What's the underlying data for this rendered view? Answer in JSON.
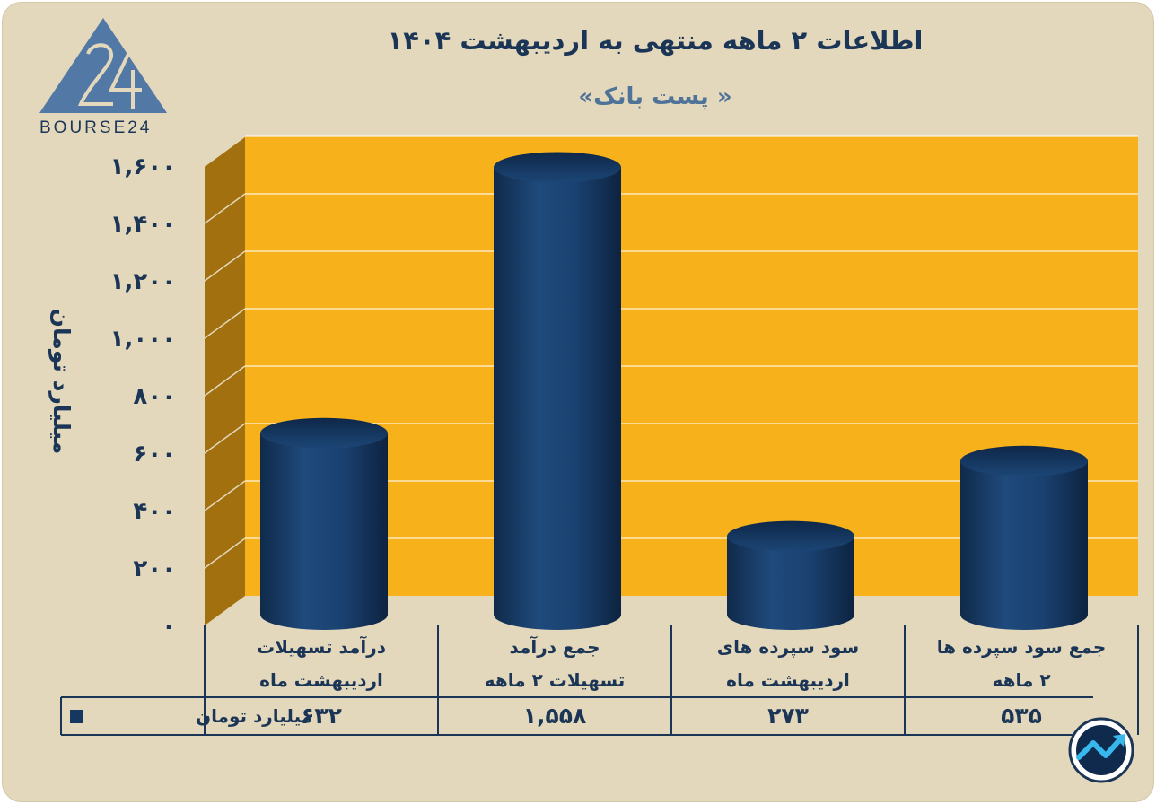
{
  "chart_data": {
    "type": "bar",
    "title": "اطلاعات ۲ ماهه منتهی به اردیبهشت ۱۴۰۴",
    "subtitle": "« پست بانک»",
    "ylabel": "میلیارد تومان",
    "ylim": [
      0,
      1600
    ],
    "yticks": [
      "۰",
      "۲۰۰",
      "۴۰۰",
      "۶۰۰",
      "۸۰۰",
      "۱,۰۰۰",
      "۱,۲۰۰",
      "۱,۴۰۰",
      "۱,۶۰۰"
    ],
    "ytick_values": [
      0,
      200,
      400,
      600,
      800,
      1000,
      1200,
      1400,
      1600
    ],
    "categories": [
      [
        "درآمد تسهیلات",
        "اردیبهشت ماه"
      ],
      [
        "جمع درآمد",
        "تسهیلات ۲ ماهه"
      ],
      [
        "سود سپرده های",
        "اردیبهشت ماه"
      ],
      [
        "جمع سود سپرده ها",
        "۲ ماهه"
      ]
    ],
    "series": [
      {
        "name": "میلیارد تومان",
        "values": [
          632,
          1558,
          273,
          535
        ],
        "labels": [
          "۶۳۲",
          "۱,۵۵۸",
          "۲۷۳",
          "۵۳۵"
        ]
      }
    ],
    "grid": true,
    "legend": "data-table-left",
    "colors": {
      "bar": "#16375f",
      "bar_light": "#2c5a8e",
      "bar_top": "#1e4a7a",
      "wall": "#f7b21b",
      "side_wall": "#a2700e",
      "text": "#1b3556",
      "background": "#e3d8bc"
    }
  },
  "branding": {
    "logo_text": "BOURSE24",
    "logo_icon": "bourse24-logo-icon",
    "badge_icon": "trend-arrow-badge-icon"
  }
}
